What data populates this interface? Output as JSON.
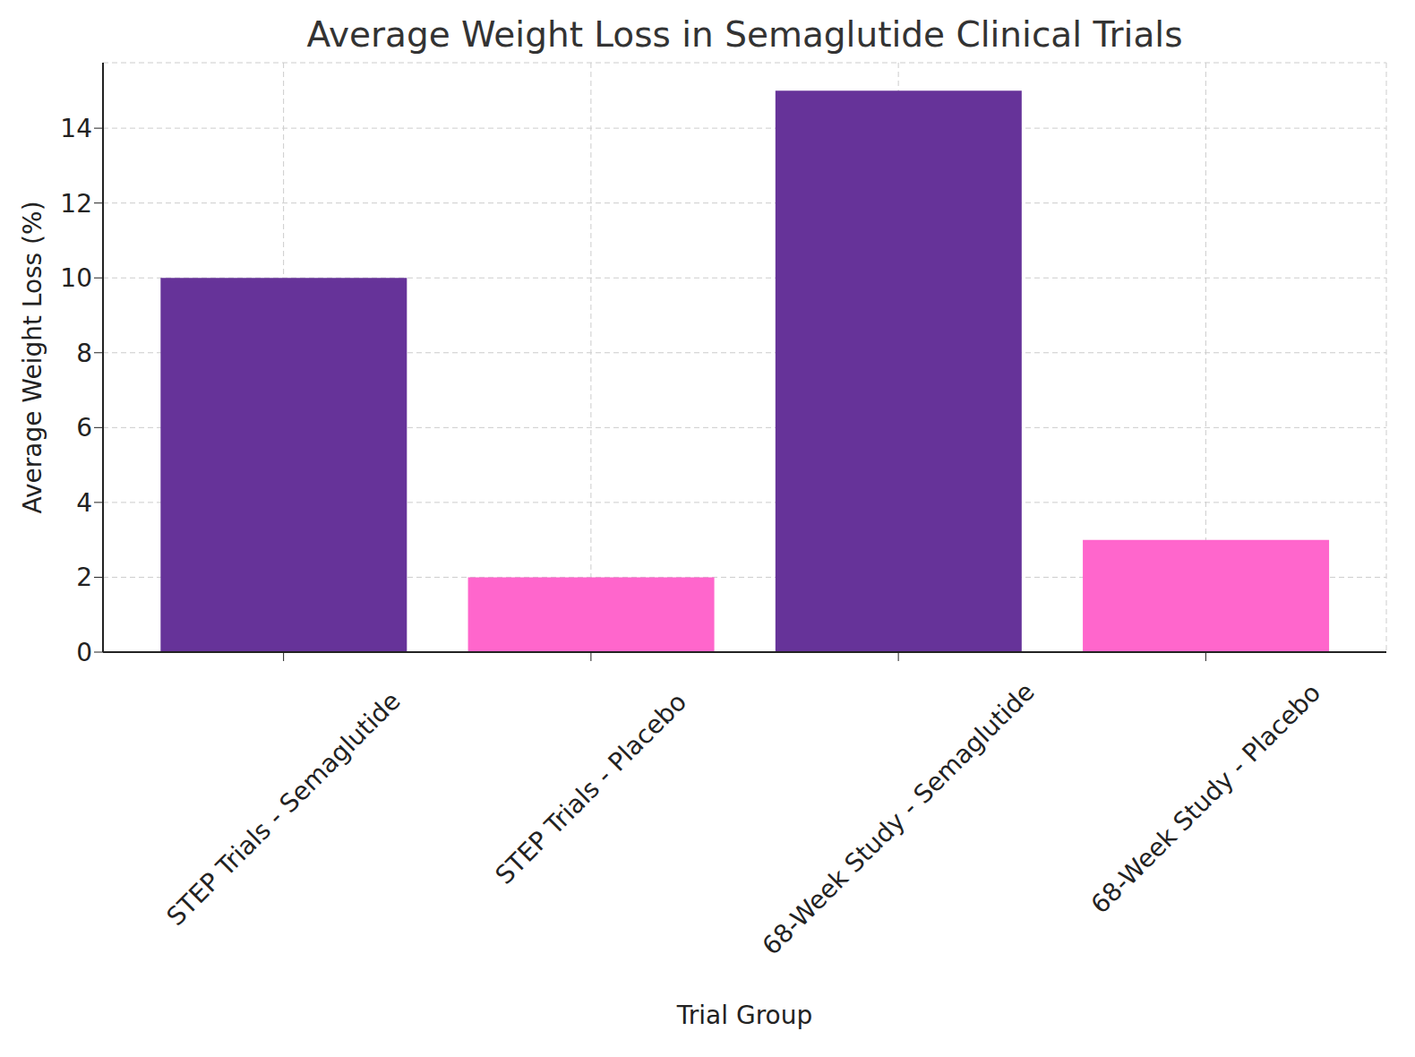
{
  "chart_data": {
    "type": "bar",
    "title": "Average Weight Loss in Semaglutide Clinical Trials",
    "x_label": "Trial Group",
    "y_label": "Average Weight Loss (%)",
    "categories": [
      "STEP Trials - Semaglutide",
      "STEP Trials - Placebo",
      "68-Week Study - Semaglutide",
      "68-Week Study - Placebo"
    ],
    "values": [
      10,
      2,
      15,
      3
    ],
    "colors": [
      "#663399",
      "#ff66cc",
      "#663399",
      "#ff66cc"
    ],
    "ylim": [
      0,
      15.75
    ],
    "yticks": [
      0,
      2,
      4,
      6,
      8,
      10,
      12,
      14
    ],
    "grid": true
  }
}
